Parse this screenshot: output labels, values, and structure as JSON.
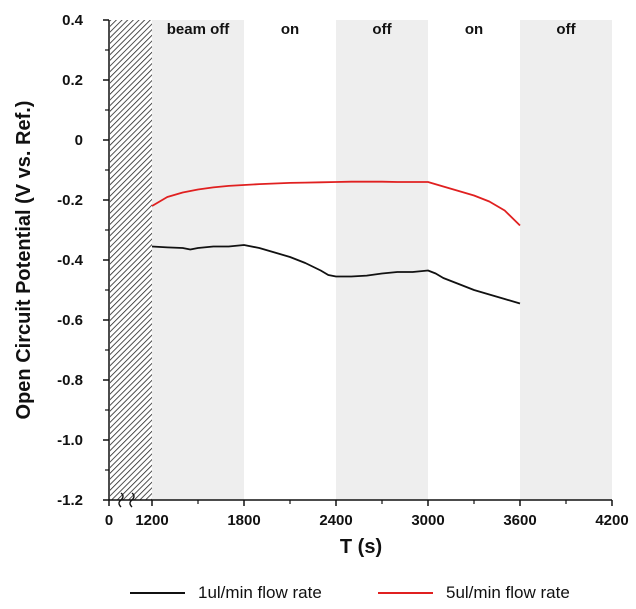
{
  "chart_data": {
    "type": "line",
    "xlabel": "T (s)",
    "ylabel": "Open Circuit Potential (V vs. Ref.)",
    "xlim": [
      0,
      4200
    ],
    "ylim": [
      -1.2,
      0.4
    ],
    "x_break_region": [
      0,
      1200
    ],
    "x_tick_labels": [
      "0",
      "1200",
      "1800",
      "2400",
      "3000",
      "3600",
      "4200"
    ],
    "y_ticks": [
      -1.2,
      -1.0,
      -0.8,
      -0.6,
      -0.4,
      -0.2,
      0,
      0.2,
      0.4
    ],
    "y_tick_labels": [
      "-1.2",
      "-1.0",
      "-0.8",
      "-0.6",
      "-0.4",
      "-0.2",
      "0",
      "0.2",
      "0.4"
    ],
    "phases": [
      {
        "label": "beam off",
        "x_start": 1200,
        "x_end": 1800,
        "shaded": true
      },
      {
        "label": "on",
        "x_start": 1800,
        "x_end": 2400,
        "shaded": false
      },
      {
        "label": "off",
        "x_start": 2400,
        "x_end": 3000,
        "shaded": true
      },
      {
        "label": "on",
        "x_start": 3000,
        "x_end": 3600,
        "shaded": false
      },
      {
        "label": "off",
        "x_start": 3600,
        "x_end": 4200,
        "shaded": true
      }
    ],
    "series": [
      {
        "name": "1ul/min flow rate",
        "color": "#111111",
        "x": [
          1200,
          1300,
          1400,
          1450,
          1500,
          1600,
          1700,
          1800,
          1900,
          2000,
          2100,
          2200,
          2300,
          2350,
          2400,
          2500,
          2600,
          2700,
          2800,
          2900,
          3000,
          3050,
          3100,
          3200,
          3300,
          3400,
          3500,
          3600
        ],
        "y": [
          -0.355,
          -0.358,
          -0.36,
          -0.365,
          -0.36,
          -0.355,
          -0.355,
          -0.35,
          -0.36,
          -0.375,
          -0.39,
          -0.41,
          -0.435,
          -0.45,
          -0.455,
          -0.455,
          -0.452,
          -0.445,
          -0.44,
          -0.44,
          -0.435,
          -0.445,
          -0.46,
          -0.48,
          -0.5,
          -0.515,
          -0.53,
          -0.545
        ]
      },
      {
        "name": "5ul/min flow rate",
        "color": "#e02020",
        "x": [
          1200,
          1300,
          1400,
          1500,
          1600,
          1700,
          1800,
          1900,
          2000,
          2100,
          2200,
          2300,
          2400,
          2500,
          2600,
          2700,
          2800,
          2900,
          3000,
          3100,
          3200,
          3300,
          3400,
          3500,
          3600
        ],
        "y": [
          -0.22,
          -0.19,
          -0.175,
          -0.165,
          -0.158,
          -0.153,
          -0.15,
          -0.147,
          -0.145,
          -0.143,
          -0.142,
          -0.141,
          -0.14,
          -0.139,
          -0.139,
          -0.139,
          -0.14,
          -0.14,
          -0.14,
          -0.155,
          -0.17,
          -0.185,
          -0.205,
          -0.235,
          -0.285
        ]
      }
    ]
  }
}
